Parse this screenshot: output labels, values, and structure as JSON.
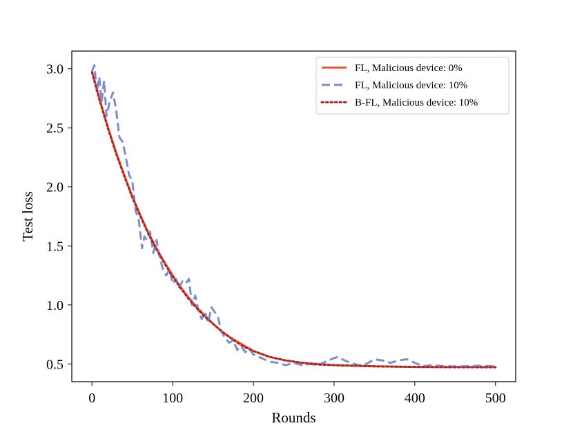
{
  "chart_data": {
    "type": "line",
    "title": "",
    "xlabel": "Rounds",
    "ylabel": "Test loss",
    "xlim": [
      -25,
      525
    ],
    "ylim": [
      0.35,
      3.15
    ],
    "x_ticks": [
      0,
      100,
      200,
      300,
      400,
      500
    ],
    "x_tick_labels": [
      "0",
      "100",
      "200",
      "300",
      "400",
      "500"
    ],
    "y_ticks": [
      0.5,
      1.0,
      1.5,
      2.0,
      2.5,
      3.0
    ],
    "y_tick_labels": [
      "0.5",
      "1.0",
      "1.5",
      "2.0",
      "2.5",
      "3.0"
    ],
    "grid": false,
    "legend_position": "top-right",
    "series": [
      {
        "name": "FL, Malicious device: 0%",
        "color": "#E4572E",
        "style": "solid",
        "x": [
          0,
          10,
          20,
          30,
          40,
          50,
          60,
          70,
          80,
          90,
          100,
          110,
          120,
          130,
          140,
          150,
          160,
          170,
          180,
          190,
          200,
          220,
          240,
          260,
          280,
          300,
          350,
          400,
          450,
          500
        ],
        "values": [
          2.98,
          2.73,
          2.5,
          2.29,
          2.1,
          1.92,
          1.76,
          1.61,
          1.48,
          1.36,
          1.25,
          1.15,
          1.06,
          0.98,
          0.91,
          0.84,
          0.78,
          0.73,
          0.69,
          0.65,
          0.61,
          0.56,
          0.53,
          0.51,
          0.5,
          0.49,
          0.48,
          0.475,
          0.475,
          0.475
        ]
      },
      {
        "name": "FL, Malicious device: 10%",
        "color": "#7B8CD0",
        "style": "dashed",
        "x": [
          0,
          3,
          6,
          9,
          12,
          15,
          18,
          22,
          26,
          30,
          34,
          38,
          42,
          46,
          50,
          54,
          58,
          62,
          65,
          68,
          72,
          76,
          80,
          84,
          88,
          92,
          96,
          100,
          104,
          108,
          112,
          116,
          120,
          124,
          128,
          132,
          136,
          140,
          144,
          148,
          152,
          156,
          160,
          165,
          170,
          175,
          180,
          185,
          190,
          195,
          200,
          210,
          220,
          230,
          240,
          250,
          260,
          270,
          280,
          290,
          300,
          305,
          310,
          320,
          330,
          340,
          350,
          360,
          370,
          380,
          390,
          400,
          410,
          420,
          440,
          460,
          480,
          500
        ],
        "values": [
          2.98,
          3.03,
          2.8,
          2.93,
          2.72,
          2.9,
          2.6,
          2.72,
          2.8,
          2.65,
          2.42,
          2.38,
          2.25,
          2.1,
          2.05,
          1.8,
          1.72,
          1.48,
          1.58,
          1.55,
          1.62,
          1.44,
          1.55,
          1.4,
          1.3,
          1.25,
          1.3,
          1.18,
          1.22,
          1.15,
          1.2,
          1.18,
          1.22,
          1.0,
          1.08,
          0.95,
          0.88,
          0.94,
          0.85,
          0.98,
          0.94,
          0.9,
          0.78,
          0.72,
          0.68,
          0.7,
          0.62,
          0.65,
          0.6,
          0.63,
          0.58,
          0.55,
          0.52,
          0.51,
          0.49,
          0.51,
          0.49,
          0.5,
          0.49,
          0.52,
          0.55,
          0.56,
          0.54,
          0.51,
          0.49,
          0.5,
          0.54,
          0.53,
          0.51,
          0.53,
          0.54,
          0.51,
          0.48,
          0.49,
          0.48,
          0.48,
          0.485,
          0.48
        ]
      },
      {
        "name": "B-FL, Malicious device: 10%",
        "color": "#B22222",
        "style": "dotted",
        "x": [
          0,
          10,
          20,
          30,
          40,
          50,
          60,
          70,
          80,
          90,
          100,
          110,
          120,
          130,
          140,
          150,
          160,
          170,
          180,
          190,
          200,
          220,
          240,
          260,
          280,
          300,
          350,
          400,
          450,
          500
        ],
        "values": [
          2.97,
          2.72,
          2.49,
          2.28,
          2.09,
          1.91,
          1.75,
          1.6,
          1.47,
          1.35,
          1.24,
          1.14,
          1.05,
          0.97,
          0.9,
          0.84,
          0.78,
          0.73,
          0.68,
          0.64,
          0.61,
          0.56,
          0.53,
          0.51,
          0.495,
          0.49,
          0.48,
          0.475,
          0.472,
          0.472
        ]
      }
    ]
  }
}
